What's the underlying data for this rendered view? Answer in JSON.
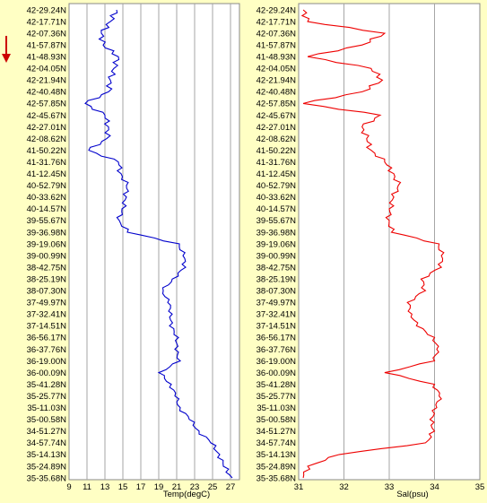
{
  "colors": {
    "background": "#ffffc4",
    "direction_arrow": "#cc0000",
    "temperature_line": "#0000cc",
    "salinity_line": "#ee0000"
  },
  "icons": {
    "direction": "down-arrow-icon"
  },
  "chart_data": [
    {
      "type": "line",
      "title": "",
      "xlabel": "Temp(degC)",
      "ylabel": "",
      "xlim": [
        9,
        28
      ],
      "x_ticks": [
        "9",
        "11",
        "13",
        "15",
        "17",
        "19",
        "21",
        "23",
        "25",
        "27"
      ],
      "categories": [
        "42-29.24N",
        "42-17.71N",
        "42-07.36N",
        "41-57.87N",
        "41-48.93N",
        "42-04.05N",
        "42-21.94N",
        "42-40.48N",
        "42-57.85N",
        "42-45.67N",
        "42-27.01N",
        "42-08.62N",
        "41-50.22N",
        "41-31.76N",
        "41-12.45N",
        "40-52.79N",
        "40-33.62N",
        "40-14.57N",
        "39-55.67N",
        "39-36.98N",
        "39-19.06N",
        "39-00.99N",
        "38-42.75N",
        "38-25.19N",
        "38-07.30N",
        "37-49.97N",
        "37-32.41N",
        "37-14.51N",
        "36-56.17N",
        "36-37.76N",
        "36-19.00N",
        "36-00.09N",
        "35-41.28N",
        "35-25.77N",
        "35-11.03N",
        "35-00.58N",
        "34-51.27N",
        "34-57.74N",
        "35-14.13N",
        "35-24.89N",
        "35-35.68N"
      ],
      "grid": true,
      "series": [
        {
          "values": [
            14.3,
            13.6,
            12.6,
            12.8,
            14.5,
            14.0,
            13.6,
            13.4,
            10.8,
            13.0,
            13.4,
            13.2,
            11.2,
            14.5,
            14.8,
            15.4,
            15.4,
            14.9,
            14.6,
            15.5,
            21.3,
            21.7,
            22.0,
            20.5,
            19.5,
            20.0,
            20.5,
            20.2,
            21.2,
            20.8,
            21.4,
            19.0,
            20.4,
            20.8,
            21.4,
            22.4,
            23.5,
            24.8,
            25.8,
            26.2,
            27.2
          ]
        }
      ]
    },
    {
      "type": "line",
      "title": "",
      "xlabel": "Sal(psu)",
      "ylabel": "",
      "xlim": [
        31,
        35
      ],
      "x_ticks": [
        "31",
        "32",
        "33",
        "34",
        "35"
      ],
      "categories": [
        "42-29.24N",
        "42-17.71N",
        "42-07.36N",
        "41-57.87N",
        "41-48.93N",
        "42-04.05N",
        "42-21.94N",
        "42-40.48N",
        "42-57.85N",
        "42-45.67N",
        "42-27.01N",
        "42-08.62N",
        "41-50.22N",
        "41-31.76N",
        "41-12.45N",
        "40-52.79N",
        "40-33.62N",
        "40-14.57N",
        "39-55.67N",
        "39-36.98N",
        "39-19.06N",
        "39-00.99N",
        "38-42.75N",
        "38-25.19N",
        "38-07.30N",
        "37-49.97N",
        "37-32.41N",
        "37-14.51N",
        "36-56.17N",
        "36-37.76N",
        "36-19.00N",
        "36-00.09N",
        "35-41.28N",
        "35-25.77N",
        "35-11.03N",
        "35-00.58N",
        "34-51.27N",
        "34-57.74N",
        "35-14.13N",
        "35-24.89N",
        "35-35.68N"
      ],
      "grid": true,
      "series": [
        {
          "values": [
            31.1,
            31.2,
            32.9,
            32.4,
            31.2,
            32.6,
            32.85,
            32.4,
            31.1,
            32.8,
            32.4,
            32.5,
            32.6,
            32.9,
            33.1,
            33.2,
            33.1,
            33.0,
            33.0,
            33.05,
            34.1,
            34.15,
            34.15,
            33.7,
            33.8,
            33.4,
            33.5,
            33.6,
            34.0,
            34.05,
            34.0,
            32.9,
            34.0,
            34.1,
            34.05,
            33.9,
            34.0,
            33.8,
            31.9,
            31.2,
            31.1
          ]
        }
      ]
    }
  ]
}
